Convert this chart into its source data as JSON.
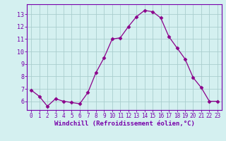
{
  "x": [
    0,
    1,
    2,
    3,
    4,
    5,
    6,
    7,
    8,
    9,
    10,
    11,
    12,
    13,
    14,
    15,
    16,
    17,
    18,
    19,
    20,
    21,
    22,
    23
  ],
  "y": [
    6.9,
    6.4,
    5.6,
    6.2,
    6.0,
    5.9,
    5.8,
    6.7,
    8.3,
    9.5,
    11.0,
    11.1,
    12.0,
    12.8,
    13.3,
    13.2,
    12.7,
    11.2,
    10.3,
    9.4,
    7.9,
    7.1,
    6.0,
    6.0
  ],
  "line_color": "#8b008b",
  "marker": "D",
  "marker_size": 2.5,
  "bg_color": "#d4f0f0",
  "grid_color": "#aacece",
  "xlabel": "Windchill (Refroidissement éolien,°C)",
  "xlabel_color": "#7700aa",
  "xlim": [
    -0.5,
    23.5
  ],
  "ylim": [
    5.3,
    13.8
  ],
  "yticks": [
    6,
    7,
    8,
    9,
    10,
    11,
    12,
    13
  ],
  "xticks": [
    0,
    1,
    2,
    3,
    4,
    5,
    6,
    7,
    8,
    9,
    10,
    11,
    12,
    13,
    14,
    15,
    16,
    17,
    18,
    19,
    20,
    21,
    22,
    23
  ],
  "tick_color": "#7700aa",
  "spine_color": "#7700aa",
  "tick_fontsize": 5.5,
  "xlabel_fontsize": 6.5
}
